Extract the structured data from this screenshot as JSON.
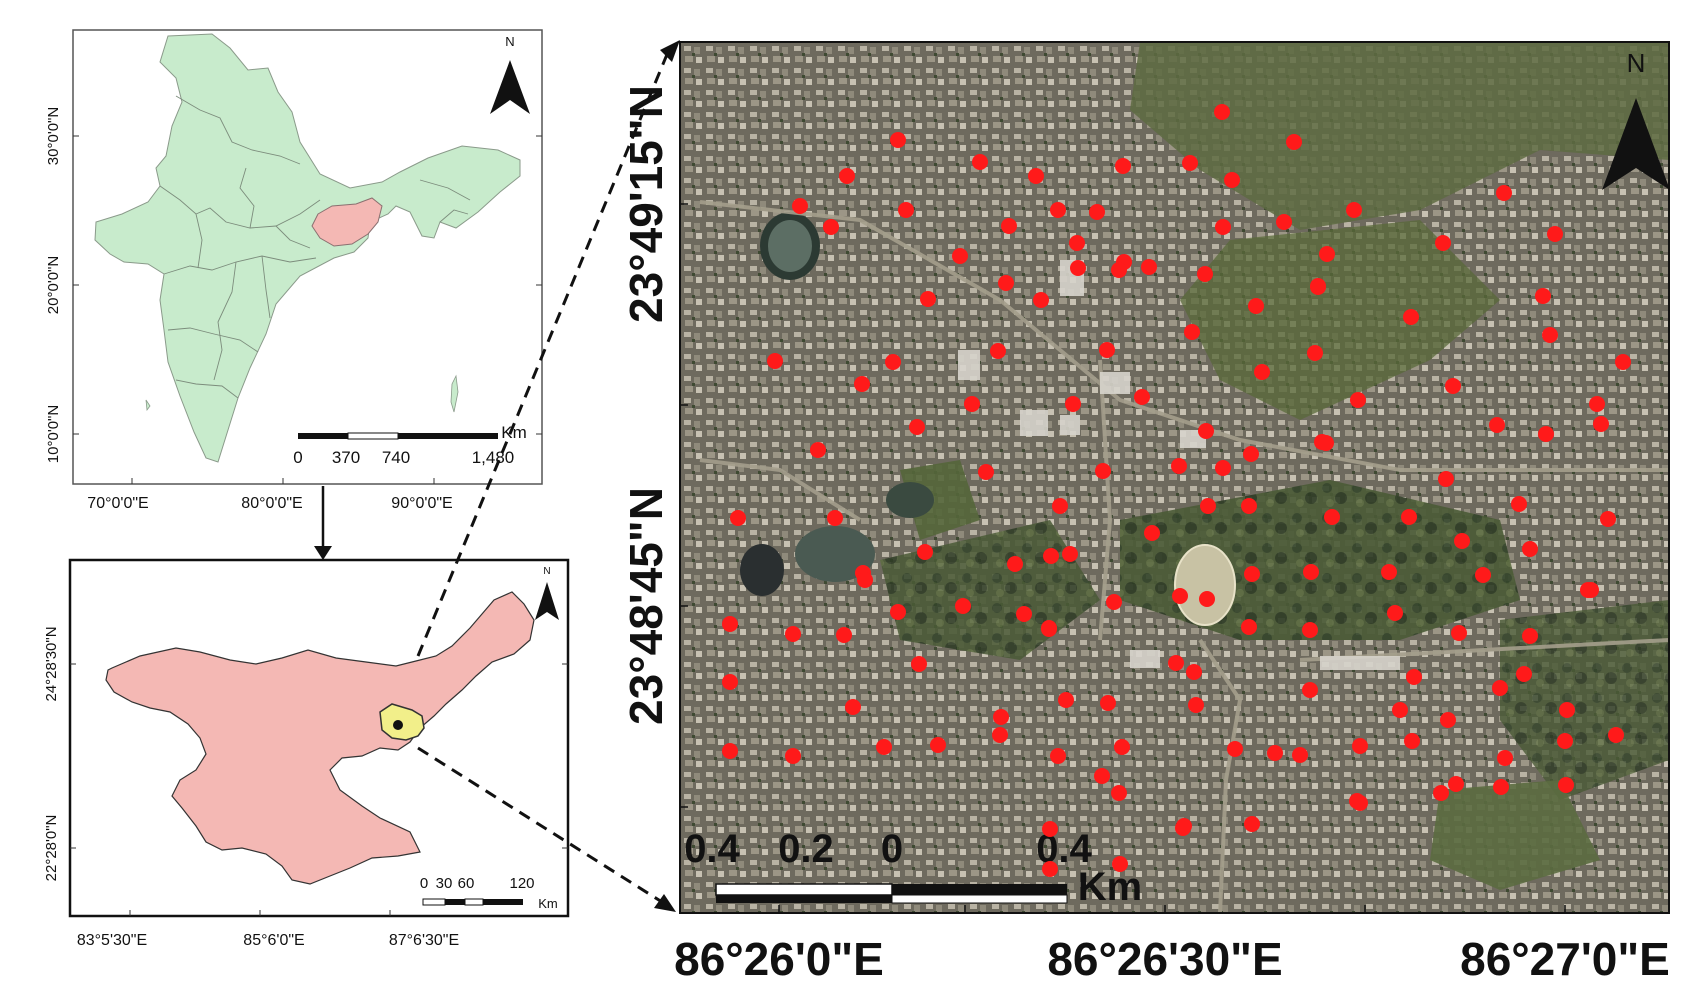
{
  "india_map": {
    "north_label": "N",
    "lat_labels": [
      "30°0'0\"N",
      "20°0'0\"N",
      "10°0'0\"N"
    ],
    "lon_labels": [
      "70°0'0\"E",
      "80°0'0\"E",
      "90°0'0\"E"
    ],
    "scale_unit": "Km",
    "scale_ticks": [
      "0",
      "370",
      "740",
      "1,480"
    ],
    "land_color": "#c8ebcc",
    "highlight_color": "#f4b8b4"
  },
  "state_map": {
    "north_label": "N",
    "lat_labels": [
      "24°28'30\"N",
      "22°28'0\"N"
    ],
    "lon_labels": [
      "83°5'30\"E",
      "85°6'0\"E",
      "87°6'30\"E"
    ],
    "scale_unit": "Km",
    "scale_ticks": [
      "0",
      "30",
      "60",
      "120"
    ],
    "state_color": "#f4b8b4",
    "district_color": "#f2ef8a"
  },
  "study_area": {
    "north_label": "N",
    "lat_labels": [
      "23°49'15\"N",
      "23°48'45\"N"
    ],
    "lon_labels": [
      "86°26'0\"E",
      "86°26'30\"E",
      "86°27'0\"E"
    ],
    "scale_unit": "Km",
    "scale_ticks": [
      "0.4",
      "0.2",
      "0",
      "0.4"
    ],
    "sample_point_color": "#ff1a1a"
  }
}
